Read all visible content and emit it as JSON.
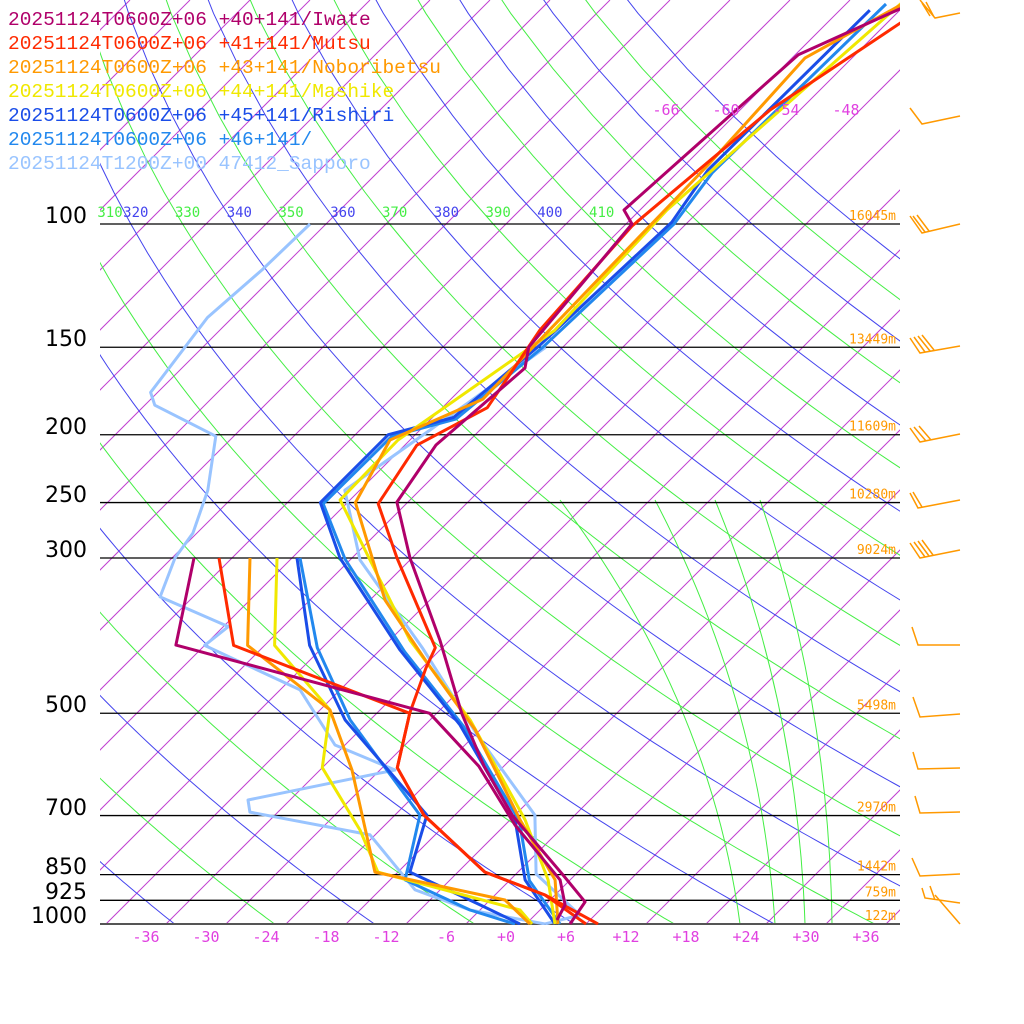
{
  "chart_data": {
    "type": "line",
    "title": "",
    "xlabel": "",
    "ylabel": "",
    "diagram": "skew-T log-p",
    "legend_position": "top-left",
    "pressure_ticks": [
      "100",
      "150",
      "200",
      "250",
      "300",
      "500",
      "700",
      "850",
      "925",
      "1000"
    ],
    "pressure_values": [
      100,
      150,
      200,
      250,
      300,
      500,
      700,
      850,
      925,
      1000
    ],
    "heights": [
      "16045m",
      "13449m",
      "11609m",
      "10280m",
      "9024m",
      "5498m",
      "2970m",
      "1442m",
      "759m",
      "122m"
    ],
    "temperature_ticks": [
      "-36",
      "-30",
      "-24",
      "-18",
      "-12",
      "-6",
      "+0",
      "+6",
      "+12",
      "+18",
      "+24",
      "+30",
      "+36"
    ],
    "temperature_tick_values": [
      -36,
      -30,
      -24,
      -18,
      -12,
      -6,
      0,
      6,
      12,
      18,
      24,
      30,
      36
    ],
    "upper_isotherm_labels": [
      "-66",
      "-60",
      "-54",
      "-48"
    ],
    "upper_isotherm_values": [
      -66,
      -60,
      -54,
      -48
    ],
    "theta_labels": [
      "310",
      "320",
      "330",
      "340",
      "350",
      "360",
      "370",
      "380",
      "390",
      "400",
      "410"
    ],
    "theta_values": [
      310,
      320,
      330,
      340,
      350,
      360,
      370,
      380,
      390,
      400,
      410
    ],
    "ylim_hpa": [
      1000,
      48
    ],
    "xlim_c_at_1000": [
      -40,
      39
    ],
    "series": [
      {
        "name": "20251124T0600Z+06 +40+141/Iwate",
        "color": "#b0006a",
        "temperature": [
          [
            47.8,
            -51
          ],
          [
            57.3,
            -57.7
          ],
          [
            95.5,
            -59.6
          ],
          [
            100,
            -57.4
          ],
          [
            150,
            -55.4
          ],
          [
            160.6,
            -53.7
          ],
          [
            206.9,
            -54.9
          ],
          [
            249.6,
            -53.1
          ],
          [
            300,
            -46.2
          ],
          [
            393,
            -35
          ],
          [
            500,
            -25.5
          ],
          [
            594.6,
            -18
          ],
          [
            698.7,
            -10.3
          ],
          [
            848,
            0.6
          ],
          [
            930,
            5.7
          ],
          [
            1000,
            6.4
          ]
        ],
        "dewpoint": [
          [
            300,
            -67.8
          ],
          [
            399.6,
            -60.9
          ],
          [
            500,
            -28.7
          ],
          [
            595,
            -18.5
          ],
          [
            722,
            -9
          ],
          [
            865,
            1
          ],
          [
            939,
            4
          ],
          [
            987,
            4.7
          ]
        ]
      },
      {
        "name": "20251124T0600Z+06 +41+141/Mutsu",
        "color": "#ff2a00",
        "temperature": [
          [
            47.8,
            -49.5
          ],
          [
            68.8,
            -55
          ],
          [
            100.7,
            -57.2
          ],
          [
            141.7,
            -56
          ],
          [
            183,
            -53.5
          ],
          [
            207,
            -56.8
          ],
          [
            251,
            -54.8
          ],
          [
            300,
            -47.5
          ],
          [
            403,
            -34.7
          ],
          [
            431,
            -33.6
          ],
          [
            500,
            -30.7
          ],
          [
            598,
            -26.5
          ],
          [
            699,
            -19.1
          ],
          [
            843,
            -7.3
          ],
          [
            909,
            1
          ],
          [
            1000,
            9.2
          ]
        ],
        "dewpoint": [
          [
            300,
            -65.3
          ],
          [
            400,
            -55.1
          ],
          [
            500,
            -30.7
          ],
          [
            598,
            -26.5
          ],
          [
            699,
            -19.1
          ],
          [
            843,
            -7.3
          ],
          [
            909,
            1
          ],
          [
            1000,
            8
          ]
        ]
      },
      {
        "name": "20251124T0600Z+06 +43+141/Noboribetsu",
        "color": "#ff9900",
        "temperature": [
          [
            47.8,
            -52
          ],
          [
            57.9,
            -56.7
          ],
          [
            82.1,
            -55.7
          ],
          [
            95.5,
            -55.5
          ],
          [
            178,
            -54.8
          ],
          [
            203.5,
            -60
          ],
          [
            250,
            -57.2
          ],
          [
            344.5,
            -44.5
          ],
          [
            426,
            -33.7
          ],
          [
            528,
            -22.5
          ],
          [
            710,
            -9
          ],
          [
            865,
            0.5
          ],
          [
            1000,
            5.2
          ]
        ],
        "dewpoint": [
          [
            300,
            -62.2
          ],
          [
            400,
            -53.7
          ],
          [
            494.6,
            -39
          ],
          [
            602.5,
            -30.8
          ],
          [
            843,
            -18.3
          ],
          [
            924,
            -2.5
          ],
          [
            1000,
            2.4
          ]
        ]
      },
      {
        "name": "20251124T0600Z+06 +44+141/Mashike",
        "color": "#f0e800",
        "temperature": [
          [
            47.8,
            -52.5
          ],
          [
            95.5,
            -55.3
          ],
          [
            142,
            -54.5
          ],
          [
            203.5,
            -59.2
          ],
          [
            247.8,
            -59
          ],
          [
            393,
            -38
          ],
          [
            511,
            -24
          ],
          [
            710,
            -8.5
          ],
          [
            865,
            -0.2
          ],
          [
            1000,
            4.9
          ]
        ],
        "dewpoint": [
          [
            300,
            -59.5
          ],
          [
            400,
            -51
          ],
          [
            494.6,
            -39
          ],
          [
            598,
            -34
          ],
          [
            734,
            -24
          ],
          [
            843,
            -18
          ],
          [
            955,
            0
          ],
          [
            1000,
            2.6
          ]
        ]
      },
      {
        "name": "20251124T0600Z+06 +45+141/Rishiri",
        "color": "#1a4de8",
        "temperature": [
          [
            49.5,
            -55
          ],
          [
            83.7,
            -55.2
          ],
          [
            99.4,
            -53.6
          ],
          [
            149,
            -54.5
          ],
          [
            189,
            -55.9
          ],
          [
            200,
            -60.7
          ],
          [
            250,
            -60.7
          ],
          [
            300,
            -53.2
          ],
          [
            406,
            -38
          ],
          [
            519.7,
            -24.5
          ],
          [
            710,
            -9.5
          ],
          [
            865,
            -2.5
          ],
          [
            1000,
            4.9
          ]
        ],
        "dewpoint": [
          [
            300,
            -57.5
          ],
          [
            400,
            -47.5
          ],
          [
            511,
            -36.5
          ],
          [
            699,
            -18.8
          ],
          [
            843,
            -14.8
          ],
          [
            939,
            -4.5
          ],
          [
            1000,
            1.4
          ]
        ]
      },
      {
        "name": "20251124T0600Z+06 +46+141/",
        "color": "#2288ee",
        "temperature": [
          [
            48.5,
            -54
          ],
          [
            84.5,
            -54.5
          ],
          [
            100,
            -53.2
          ],
          [
            150,
            -54
          ],
          [
            190,
            -55.5
          ],
          [
            201,
            -60.2
          ],
          [
            251,
            -60.3
          ],
          [
            301,
            -52.6
          ],
          [
            408,
            -37.4
          ],
          [
            522,
            -24
          ],
          [
            712,
            -9
          ],
          [
            867,
            -2
          ],
          [
            1000,
            5.4
          ]
        ],
        "dewpoint": [
          [
            300,
            -57.2
          ],
          [
            403,
            -46.5
          ],
          [
            511,
            -36
          ],
          [
            699,
            -19.5
          ],
          [
            865,
            -14.5
          ],
          [
            955,
            -5
          ],
          [
            1000,
            0.9
          ]
        ]
      },
      {
        "name": "20251124T1200Z+00 47412_Sapporo",
        "color": "#99c4ff",
        "temperature": [
          [
            150,
            -53.7
          ],
          [
            197,
            -57
          ],
          [
            240,
            -59.5
          ],
          [
            302,
            -51
          ],
          [
            403,
            -36
          ],
          [
            540,
            -21.5
          ],
          [
            699,
            -8
          ],
          [
            848,
            -2
          ],
          [
            971,
            6.5
          ],
          [
            1000,
            3.9
          ]
        ],
        "dewpoint": [
          [
            100,
            -89.6
          ],
          [
            116,
            -89.8
          ],
          [
            136,
            -90.5
          ],
          [
            174,
            -88.7
          ],
          [
            181.5,
            -87
          ],
          [
            201,
            -77.8
          ],
          [
            240,
            -73.2
          ],
          [
            276.4,
            -70.4
          ],
          [
            300,
            -69.7
          ],
          [
            341,
            -67.3
          ],
          [
            376,
            -57.5
          ],
          [
            400,
            -58
          ],
          [
            463,
            -44
          ],
          [
            555,
            -35
          ],
          [
            602.5,
            -26.5
          ],
          [
            665,
            -38.2
          ],
          [
            692,
            -36.8
          ],
          [
            746,
            -22.5
          ],
          [
            894,
            -12.5
          ],
          [
            955,
            -5
          ],
          [
            1000,
            3.9
          ]
        ]
      }
    ]
  }
}
